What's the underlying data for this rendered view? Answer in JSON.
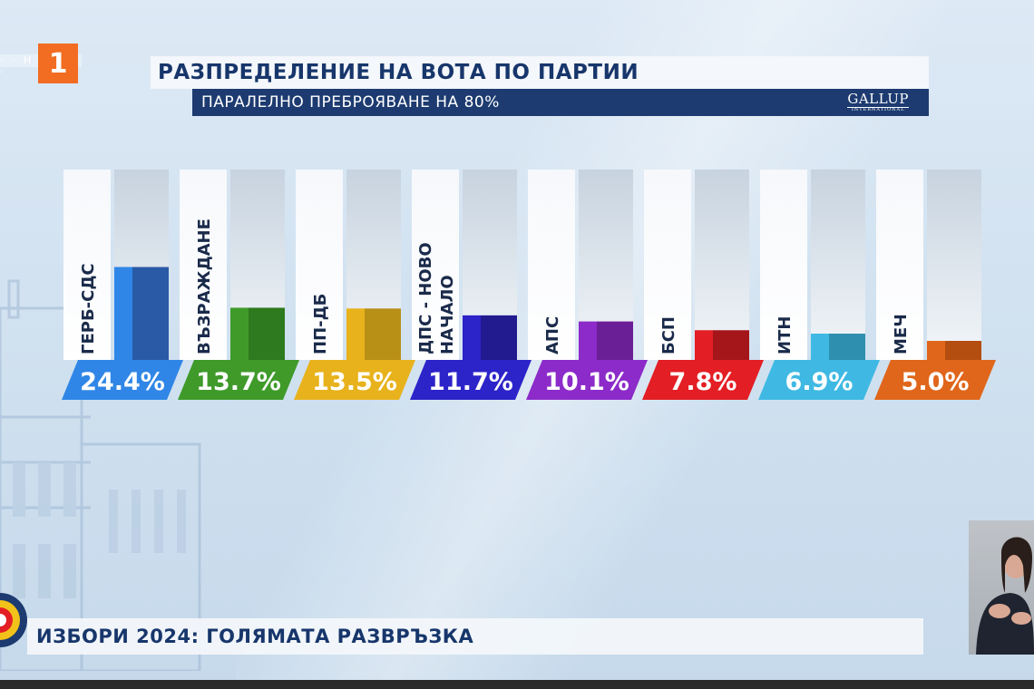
{
  "channel": {
    "logo_text": "1",
    "ticker_text": "· · Н · Т · ·"
  },
  "header": {
    "title": "РАЗПРЕДЕЛЕНИЕ НА ВОТА ПО ПАРТИИ",
    "subtitle": "ПАРАЛЕЛНО ПРЕБРОЯВАНЕ НА 80%",
    "pollster": "GALLUP",
    "pollster_sub": "INTERNATIONAL"
  },
  "chart_data": {
    "type": "bar",
    "title": "РАЗПРЕДЕЛЕНИЕ НА ВОТА ПО ПАРТИИ",
    "subtitle": "ПАРАЛЕЛНО ПРЕБРОЯВАНЕ НА 80%",
    "categories": [
      "ГЕРБ-СДС",
      "ВЪЗРАЖДАНЕ",
      "ПП-ДБ",
      "ДПС - НОВО НАЧАЛО",
      "АПС",
      "БСП",
      "ИТН",
      "МЕЧ"
    ],
    "category_lines": [
      [
        "ГЕРБ-СДС"
      ],
      [
        "ВЪЗРАЖДАНЕ"
      ],
      [
        "ПП-ДБ"
      ],
      [
        "ДПС - НОВО",
        "НАЧАЛО"
      ],
      [
        "АПС"
      ],
      [
        "БСП"
      ],
      [
        "ИТН"
      ],
      [
        "МЕЧ"
      ]
    ],
    "values": [
      24.4,
      13.7,
      13.5,
      11.7,
      10.1,
      7.8,
      6.9,
      5.0
    ],
    "value_labels": [
      "24.4%",
      "13.7%",
      "13.5%",
      "11.7%",
      "10.1%",
      "7.8%",
      "6.9%",
      "5.0%"
    ],
    "colors": [
      "#2f86e6",
      "#3f9a2a",
      "#e8b21c",
      "#2c23c9",
      "#8c2bc9",
      "#e31e24",
      "#3fb9e3",
      "#e0661b"
    ],
    "colors_dark": [
      "#2a5aa6",
      "#2e7a1e",
      "#b89016",
      "#221a8f",
      "#6a1f96",
      "#a4161a",
      "#2f8fae",
      "#b34d10"
    ],
    "ylim": [
      0,
      50
    ],
    "xlabel": "",
    "ylabel": "",
    "grid": false,
    "legend": "none"
  },
  "footer": {
    "lower_third": "ИЗБОРИ 2024: ГОЛЯМАТА РАЗВРЪЗКА"
  }
}
